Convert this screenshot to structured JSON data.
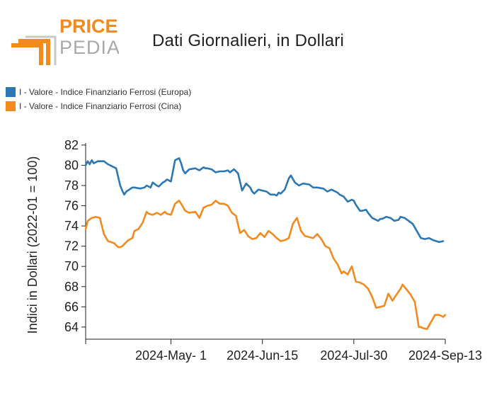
{
  "logo": {
    "line1": "PRICE",
    "line2": "PEDIA"
  },
  "colors": {
    "europa": "#2b78b4",
    "cina": "#f28a1e",
    "logo_orange": "#f28a1e",
    "logo_gray": "#a8a8a8"
  },
  "chart_data": {
    "type": "line",
    "title": "Dati Giornalieri, in Dollari",
    "ylabel": "Indici in Dollari (2022-01 = 100)",
    "xlabel": "",
    "ylim": [
      62.8,
      82.2
    ],
    "yticks": [
      64,
      66,
      68,
      70,
      72,
      74,
      76,
      78,
      80,
      82
    ],
    "xlim": [
      "2024-03-20",
      "2024-09-13"
    ],
    "xticks": [
      "2024-May- 1",
      "2024-Jun-15",
      "2024-Jul-30",
      "2024-Sep-13"
    ],
    "xtick_dates": [
      "2024-05-01",
      "2024-06-15",
      "2024-07-30",
      "2024-09-13"
    ],
    "grid": false,
    "legend_position": "top-left",
    "series": [
      {
        "name": "I - Valore - Indice Finanziario Ferrosi (Europa)",
        "color": "#2b78b4",
        "x": [
          "2024-03-20",
          "2024-03-21",
          "2024-03-22",
          "2024-03-23",
          "2024-03-24",
          "2024-03-26",
          "2024-03-29",
          "2024-03-31",
          "2024-04-04",
          "2024-04-06",
          "2024-04-07",
          "2024-04-08",
          "2024-04-09",
          "2024-04-12",
          "2024-04-13",
          "2024-04-16",
          "2024-04-18",
          "2024-04-19",
          "2024-04-21",
          "2024-04-22",
          "2024-04-24",
          "2024-04-25",
          "2024-04-27",
          "2024-04-28",
          "2024-04-29",
          "2024-05-01",
          "2024-05-03",
          "2024-05-05",
          "2024-05-06",
          "2024-05-07",
          "2024-05-08",
          "2024-05-10",
          "2024-05-13",
          "2024-05-15",
          "2024-05-17",
          "2024-05-18",
          "2024-05-19",
          "2024-05-21",
          "2024-05-23",
          "2024-05-25",
          "2024-05-27",
          "2024-05-29",
          "2024-05-30",
          "2024-06-01",
          "2024-06-03",
          "2024-06-05",
          "2024-06-07",
          "2024-06-09",
          "2024-06-10",
          "2024-06-11",
          "2024-06-13",
          "2024-06-15",
          "2024-06-17",
          "2024-06-19",
          "2024-06-21",
          "2024-06-22",
          "2024-06-23",
          "2024-06-24",
          "2024-06-26",
          "2024-06-28",
          "2024-06-29",
          "2024-07-01",
          "2024-07-03",
          "2024-07-05",
          "2024-07-08",
          "2024-07-10",
          "2024-07-12",
          "2024-07-15",
          "2024-07-17",
          "2024-07-19",
          "2024-07-22",
          "2024-07-23",
          "2024-07-25",
          "2024-07-27",
          "2024-07-29",
          "2024-07-30",
          "2024-07-31",
          "2024-08-02",
          "2024-08-03",
          "2024-08-05",
          "2024-08-06",
          "2024-08-08",
          "2024-08-11",
          "2024-08-12",
          "2024-08-13",
          "2024-08-15",
          "2024-08-17",
          "2024-08-19",
          "2024-08-21",
          "2024-08-22",
          "2024-08-24",
          "2024-08-26",
          "2024-08-28",
          "2024-08-30",
          "2024-09-01",
          "2024-09-03",
          "2024-09-05",
          "2024-09-07",
          "2024-09-10",
          "2024-09-12"
        ],
        "values": [
          80.0,
          80.4,
          80.1,
          80.5,
          80.2,
          80.4,
          80.4,
          80.1,
          79.7,
          78.0,
          77.5,
          77.1,
          77.4,
          77.8,
          77.8,
          77.7,
          77.8,
          78.0,
          77.8,
          78.3,
          78.0,
          77.9,
          78.3,
          78.4,
          78.6,
          78.4,
          80.5,
          80.7,
          80.2,
          79.5,
          79.2,
          79.6,
          79.7,
          79.5,
          79.8,
          79.7,
          79.7,
          79.6,
          79.3,
          79.4,
          79.4,
          79.5,
          79.3,
          79.6,
          79.2,
          77.5,
          78.2,
          77.8,
          77.4,
          77.2,
          77.6,
          77.5,
          77.4,
          77.1,
          77.1,
          77.0,
          77.3,
          77.2,
          77.6,
          78.7,
          79.0,
          78.3,
          78.0,
          78.2,
          78.1,
          77.8,
          77.8,
          77.7,
          77.4,
          77.6,
          77.3,
          77.1,
          76.9,
          76.4,
          76.6,
          76.5,
          76.1,
          75.5,
          75.5,
          75.6,
          75.3,
          74.8,
          74.5,
          74.7,
          74.7,
          74.9,
          74.8,
          74.5,
          74.6,
          74.9,
          74.8,
          74.5,
          74.2,
          73.5,
          72.8,
          72.7,
          72.8,
          72.6,
          72.4,
          72.5
        ]
      },
      {
        "name": "I - Valore - Indice Finanziario Ferrosi (Cina)",
        "color": "#f28a1e",
        "x": [
          "2024-03-20",
          "2024-03-21",
          "2024-03-23",
          "2024-03-25",
          "2024-03-27",
          "2024-03-29",
          "2024-03-31",
          "2024-04-03",
          "2024-04-05",
          "2024-04-06",
          "2024-04-07",
          "2024-04-08",
          "2024-04-10",
          "2024-04-12",
          "2024-04-13",
          "2024-04-15",
          "2024-04-17",
          "2024-04-19",
          "2024-04-20",
          "2024-04-22",
          "2024-04-24",
          "2024-04-26",
          "2024-04-28",
          "2024-04-29",
          "2024-05-01",
          "2024-05-03",
          "2024-05-05",
          "2024-05-06",
          "2024-05-08",
          "2024-05-10",
          "2024-05-13",
          "2024-05-15",
          "2024-05-17",
          "2024-05-19",
          "2024-05-21",
          "2024-05-23",
          "2024-05-25",
          "2024-05-27",
          "2024-05-29",
          "2024-05-31",
          "2024-06-02",
          "2024-06-04",
          "2024-06-06",
          "2024-06-08",
          "2024-06-10",
          "2024-06-12",
          "2024-06-14",
          "2024-06-16",
          "2024-06-18",
          "2024-06-20",
          "2024-06-22",
          "2024-06-24",
          "2024-06-26",
          "2024-06-28",
          "2024-06-30",
          "2024-07-02",
          "2024-07-04",
          "2024-07-06",
          "2024-07-08",
          "2024-07-10",
          "2024-07-12",
          "2024-07-14",
          "2024-07-16",
          "2024-07-18",
          "2024-07-20",
          "2024-07-22",
          "2024-07-24",
          "2024-07-25",
          "2024-07-27",
          "2024-07-29",
          "2024-07-31",
          "2024-08-02",
          "2024-08-04",
          "2024-08-06",
          "2024-08-08",
          "2024-08-10",
          "2024-08-12",
          "2024-08-14",
          "2024-08-16",
          "2024-08-18",
          "2024-08-20",
          "2024-08-22",
          "2024-08-23",
          "2024-08-25",
          "2024-08-27",
          "2024-08-29",
          "2024-08-31",
          "2024-09-01",
          "2024-09-02",
          "2024-09-04",
          "2024-09-06",
          "2024-09-08",
          "2024-09-10",
          "2024-09-12",
          "2024-09-13"
        ],
        "values": [
          73.7,
          74.5,
          74.8,
          74.9,
          74.8,
          73.2,
          72.5,
          72.3,
          71.9,
          71.9,
          72.0,
          72.2,
          72.6,
          72.8,
          73.5,
          73.7,
          74.3,
          75.4,
          75.2,
          75.1,
          75.3,
          75.1,
          75.4,
          75.2,
          75.1,
          76.2,
          76.5,
          76.2,
          75.5,
          75.3,
          75.4,
          74.8,
          75.8,
          76.0,
          76.1,
          76.5,
          76.2,
          76.2,
          76.0,
          75.3,
          75.0,
          73.3,
          73.6,
          73.0,
          72.7,
          72.8,
          73.3,
          72.9,
          73.5,
          73.2,
          72.8,
          72.5,
          72.6,
          72.8,
          74.2,
          74.8,
          73.5,
          73.0,
          72.9,
          72.8,
          73.2,
          72.7,
          72.0,
          71.8,
          70.8,
          70.2,
          69.3,
          69.5,
          69.2,
          70.0,
          68.5,
          68.4,
          68.2,
          67.8,
          67.0,
          65.9,
          66.0,
          66.1,
          67.3,
          66.6,
          67.2,
          67.8,
          68.2,
          67.7,
          67.2,
          66.5,
          64.0,
          64.0,
          63.9,
          63.8,
          64.5,
          65.2,
          65.2,
          65.0,
          65.2
        ]
      }
    ]
  }
}
